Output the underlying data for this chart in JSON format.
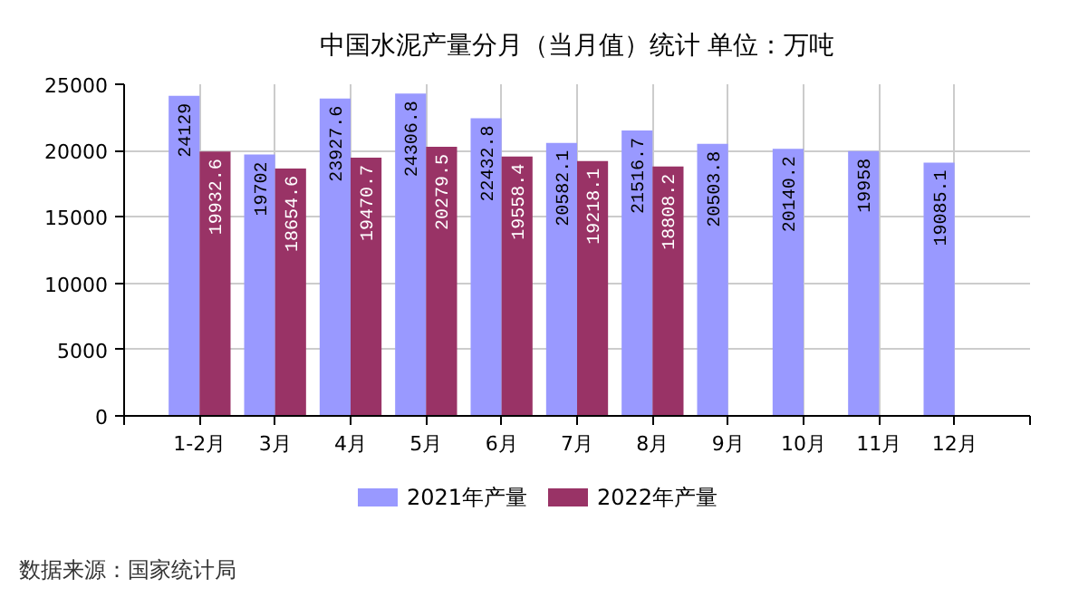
{
  "chart_data": {
    "type": "bar",
    "title": "中国水泥产量分月（当月值）统计 单位：万吨",
    "categories": [
      "1-2月",
      "3月",
      "4月",
      "5月",
      "6月",
      "7月",
      "8月",
      "9月",
      "10月",
      "11月",
      "12月"
    ],
    "series": [
      {
        "name": "2021年产量",
        "color": "#9999ff",
        "values": [
          24129,
          19702,
          23927.6,
          24306.8,
          22432.8,
          20582.1,
          21516.7,
          20503.8,
          20140.2,
          19958,
          19085.1
        ]
      },
      {
        "name": "2022年产量",
        "color": "#993366",
        "values": [
          19932.6,
          18654.6,
          19470.7,
          20279.5,
          19558.4,
          19218.1,
          18808.2,
          null,
          null,
          null,
          null
        ]
      }
    ],
    "ylim": [
      0,
      25000
    ],
    "yticks": [
      0,
      5000,
      10000,
      15000,
      20000,
      25000
    ],
    "grid": true,
    "legend": "bottom",
    "data_labels": true,
    "annotations": [
      "数据来源：国家统计局"
    ]
  }
}
